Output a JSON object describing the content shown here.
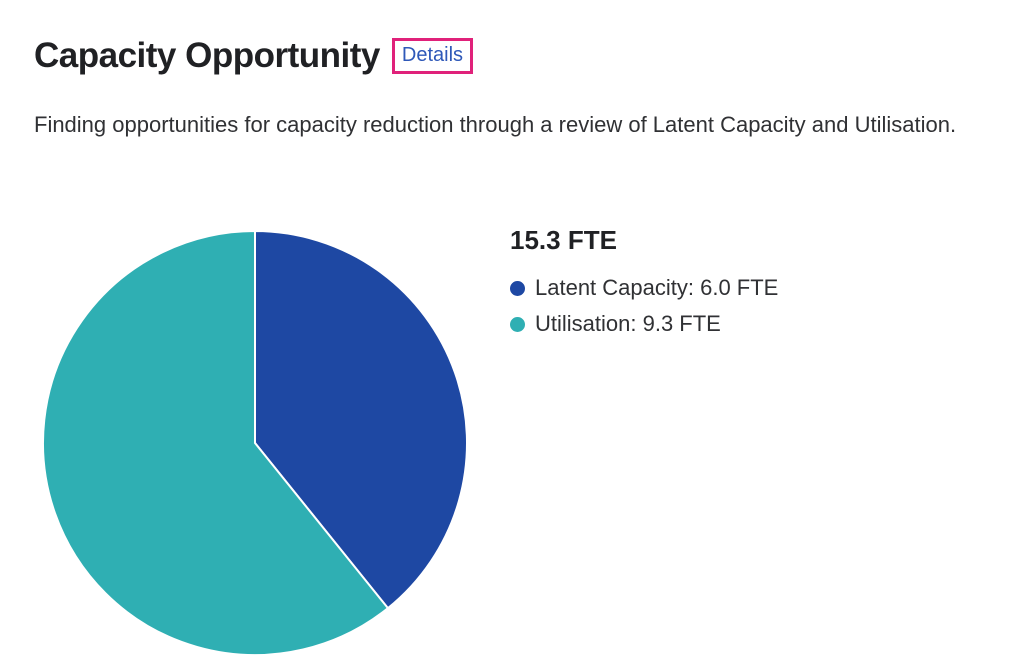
{
  "header": {
    "title": "Capacity Opportunity",
    "details_label": "Details"
  },
  "description": "Finding opportunities for capacity reduction through a review of Latent Capacity and Utilisation.",
  "colors": {
    "latent": "#1e48a3",
    "utilisation": "#2fafb3",
    "details_highlight": "#e0217a",
    "link": "#2e58b8"
  },
  "legend": {
    "total": "15.3 FTE",
    "items": [
      {
        "label": "Latent Capacity: 6.0 FTE"
      },
      {
        "label": "Utilisation: 9.3 FTE"
      }
    ]
  },
  "chart_data": {
    "type": "pie",
    "categories": [
      "Latent Capacity",
      "Utilisation"
    ],
    "values": [
      6.0,
      9.3
    ],
    "colors": [
      "#1e48a3",
      "#2fafb3"
    ],
    "unit": "FTE",
    "start_angle": "top",
    "direction": "clockwise",
    "legend_placement": "right"
  }
}
